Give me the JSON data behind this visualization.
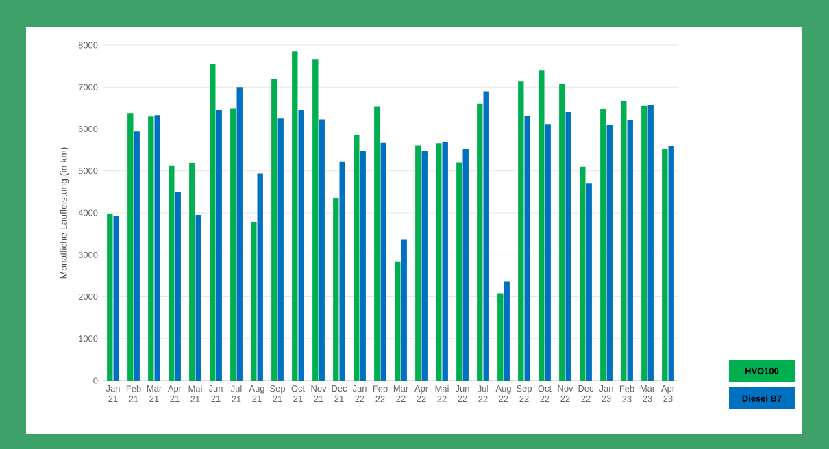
{
  "chart_data": {
    "type": "bar",
    "ylabel": "Monatliche Laufleistung (in km)",
    "categories": [
      "Jan 21",
      "Feb 21",
      "Mar 21",
      "Apr 21",
      "Mai 21",
      "Jun 21",
      "Jul 21",
      "Aug 21",
      "Sep 21",
      "Oct 21",
      "Nov 21",
      "Dec 21",
      "Jan 22",
      "Feb 22",
      "Mar 22",
      "Apr 22",
      "Mai 22",
      "Jun 22",
      "Jul 22",
      "Aug 22",
      "Sep 22",
      "Oct 22",
      "Nov 22",
      "Dec 22",
      "Jan 23",
      "Feb 23",
      "Mar 23",
      "Apr 23"
    ],
    "series": [
      {
        "name": "HVO100",
        "color": "#00b050",
        "values": [
          3970,
          6380,
          6300,
          5130,
          5190,
          7560,
          6490,
          3780,
          7190,
          7850,
          7670,
          4350,
          5860,
          6540,
          2830,
          5610,
          5660,
          5200,
          6600,
          2080,
          7130,
          7390,
          7080,
          5100,
          6480,
          6660,
          6550,
          5530
        ]
      },
      {
        "name": "Diesel B7",
        "color": "#0070c0",
        "values": [
          3930,
          5940,
          6330,
          4500,
          3950,
          6450,
          7000,
          4940,
          6250,
          6460,
          6230,
          5230,
          5480,
          5670,
          3370,
          5470,
          5680,
          5530,
          6900,
          2360,
          6320,
          6120,
          6400,
          4700,
          6100,
          6220,
          6580,
          5600
        ]
      }
    ],
    "ylim": [
      0,
      8000
    ],
    "yticks": [
      0,
      1000,
      2000,
      3000,
      4000,
      5000,
      6000,
      7000,
      8000
    ],
    "grid": "y",
    "legend": "bottom right"
  }
}
